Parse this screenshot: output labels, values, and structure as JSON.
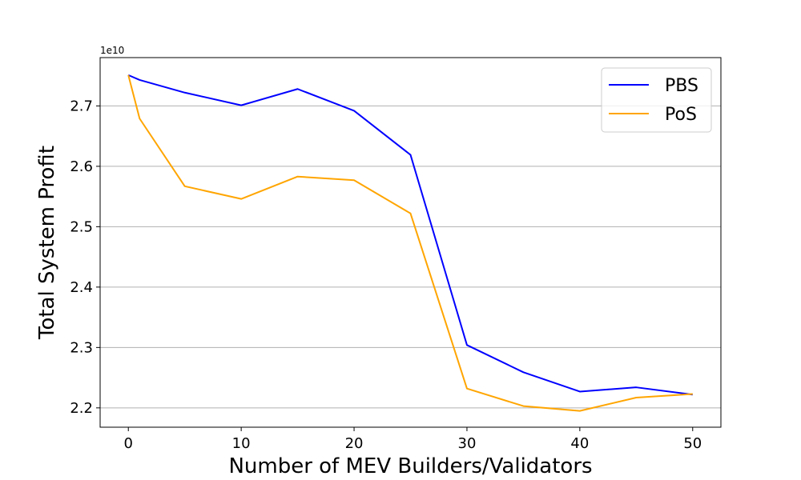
{
  "chart_data": {
    "type": "line",
    "x": [
      0,
      1,
      5,
      10,
      15,
      20,
      25,
      30,
      35,
      40,
      45,
      50
    ],
    "series": [
      {
        "name": "PBS",
        "color": "#0000ff",
        "values": [
          2.751,
          2.743,
          2.722,
          2.701,
          2.728,
          2.692,
          2.619,
          2.304,
          2.259,
          2.227,
          2.234,
          2.222
        ]
      },
      {
        "name": "PoS",
        "color": "#ffa500",
        "values": [
          2.751,
          2.679,
          2.567,
          2.546,
          2.583,
          2.577,
          2.522,
          2.232,
          2.203,
          2.195,
          2.217,
          2.223
        ]
      }
    ],
    "xlabel": "Number of MEV Builders/Validators",
    "ylabel": "Total System Profit",
    "y_offset_text": "1e10",
    "xlim": [
      -2.5,
      52.5
    ],
    "ylim": [
      2.168,
      2.78
    ],
    "xticks": [
      0,
      10,
      20,
      30,
      40,
      50
    ],
    "xtick_labels": [
      "0",
      "10",
      "20",
      "30",
      "40",
      "50"
    ],
    "yticks": [
      2.2,
      2.3,
      2.4,
      2.5,
      2.6,
      2.7
    ],
    "ytick_labels": [
      "2.2",
      "2.3",
      "2.4",
      "2.5",
      "2.6",
      "2.7"
    ],
    "grid": "horizontal",
    "legend_position": "top-right"
  }
}
